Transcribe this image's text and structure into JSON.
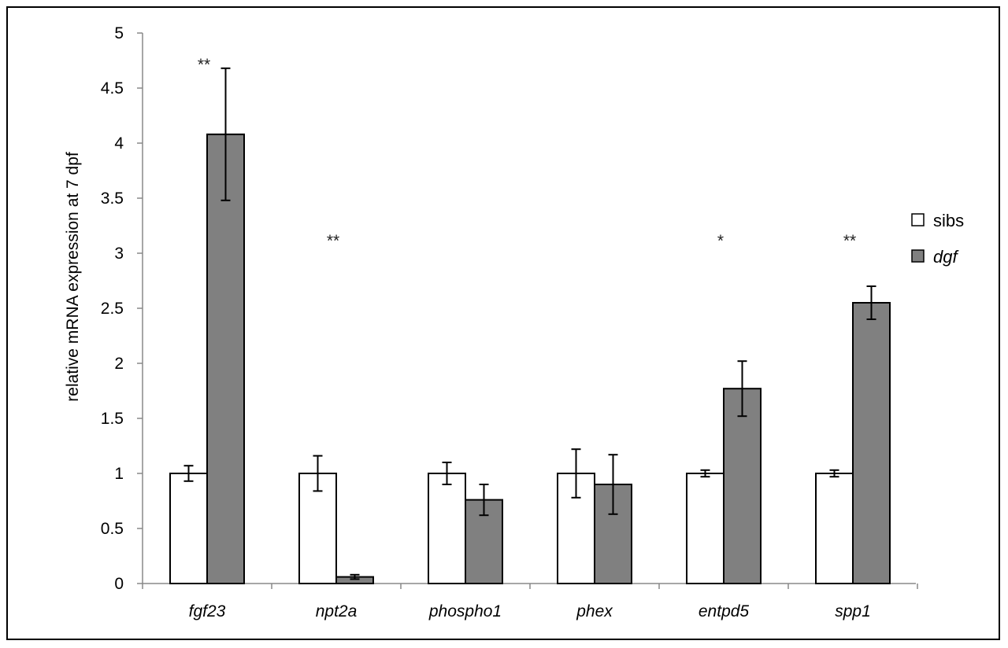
{
  "chart_data": {
    "type": "bar",
    "title": "",
    "xlabel": "",
    "ylabel": "relative mRNA expression at 7 dpf",
    "ylim": [
      0,
      5
    ],
    "yticks": [
      "0",
      "0.5",
      "1",
      "1.5",
      "2",
      "2.5",
      "3",
      "3.5",
      "4",
      "4.5",
      "5"
    ],
    "ytick_values": [
      0,
      0.5,
      1,
      1.5,
      2,
      2.5,
      3,
      3.5,
      4,
      4.5,
      5
    ],
    "grid": false,
    "legend_position": "right",
    "categories": [
      "fgf23",
      "npt2a",
      "phospho1",
      "phex",
      "entpd5",
      "spp1"
    ],
    "series": [
      {
        "name": "sibs",
        "color": "#ffffff",
        "values": [
          1.0,
          1.0,
          1.0,
          1.0,
          1.0,
          1.0
        ],
        "errors": [
          0.07,
          0.16,
          0.1,
          0.22,
          0.03,
          0.03
        ]
      },
      {
        "name": "dgf",
        "color": "#808080",
        "italic": true,
        "values": [
          4.08,
          0.06,
          0.76,
          0.9,
          1.77,
          2.55
        ],
        "errors": [
          0.6,
          0.02,
          0.14,
          0.27,
          0.25,
          0.15
        ]
      }
    ],
    "significance": [
      {
        "category": "fgf23",
        "label": "**",
        "y": 4.8
      },
      {
        "category": "npt2a",
        "label": "**",
        "y": 3.2
      },
      {
        "category": "entpd5",
        "label": "*",
        "y": 3.2
      },
      {
        "category": "spp1",
        "label": "**",
        "y": 3.2
      }
    ]
  }
}
